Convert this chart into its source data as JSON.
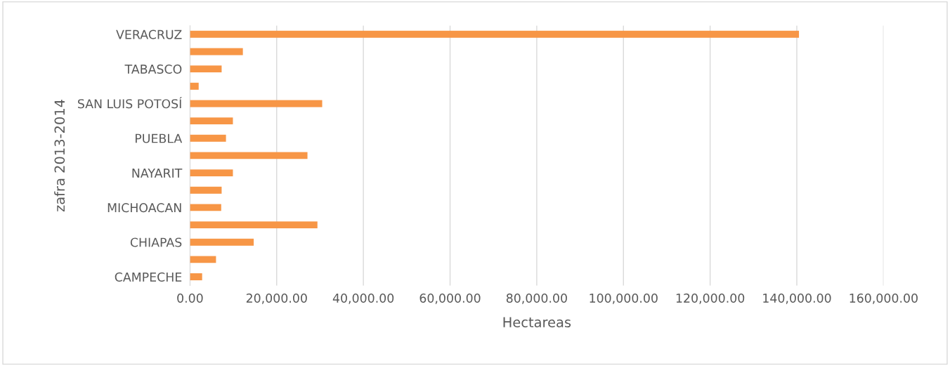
{
  "chart_data": {
    "type": "bar",
    "orientation": "horizontal",
    "ylabel": "zafra 2013-2014",
    "xlabel": "Hectareas",
    "categories": [
      "VERACRUZ",
      null,
      "TABASCO",
      null,
      "SAN LUIS POTOSÍ",
      null,
      "PUEBLA",
      null,
      "NAYARIT",
      null,
      "MICHOACAN",
      null,
      "CHIAPAS",
      null,
      "CAMPECHE"
    ],
    "values": [
      140500,
      12200,
      7300,
      2000,
      30500,
      9900,
      8300,
      27100,
      9900,
      7300,
      7200,
      29400,
      14700,
      6000,
      2800
    ],
    "color": "#f79646",
    "xlim": [
      0,
      160000
    ],
    "xticks": [
      {
        "value": 0,
        "label": "0.00"
      },
      {
        "value": 20000,
        "label": "20,000.00"
      },
      {
        "value": 40000,
        "label": "40,000.00"
      },
      {
        "value": 60000,
        "label": "60,000.00"
      },
      {
        "value": 80000,
        "label": "80,000.00"
      },
      {
        "value": 100000,
        "label": "100,000.00"
      },
      {
        "value": 120000,
        "label": "120,000.00"
      },
      {
        "value": 140000,
        "label": "140,000.00"
      },
      {
        "value": 160000,
        "label": "160,000.00"
      }
    ],
    "grid": "x",
    "legend": false
  }
}
